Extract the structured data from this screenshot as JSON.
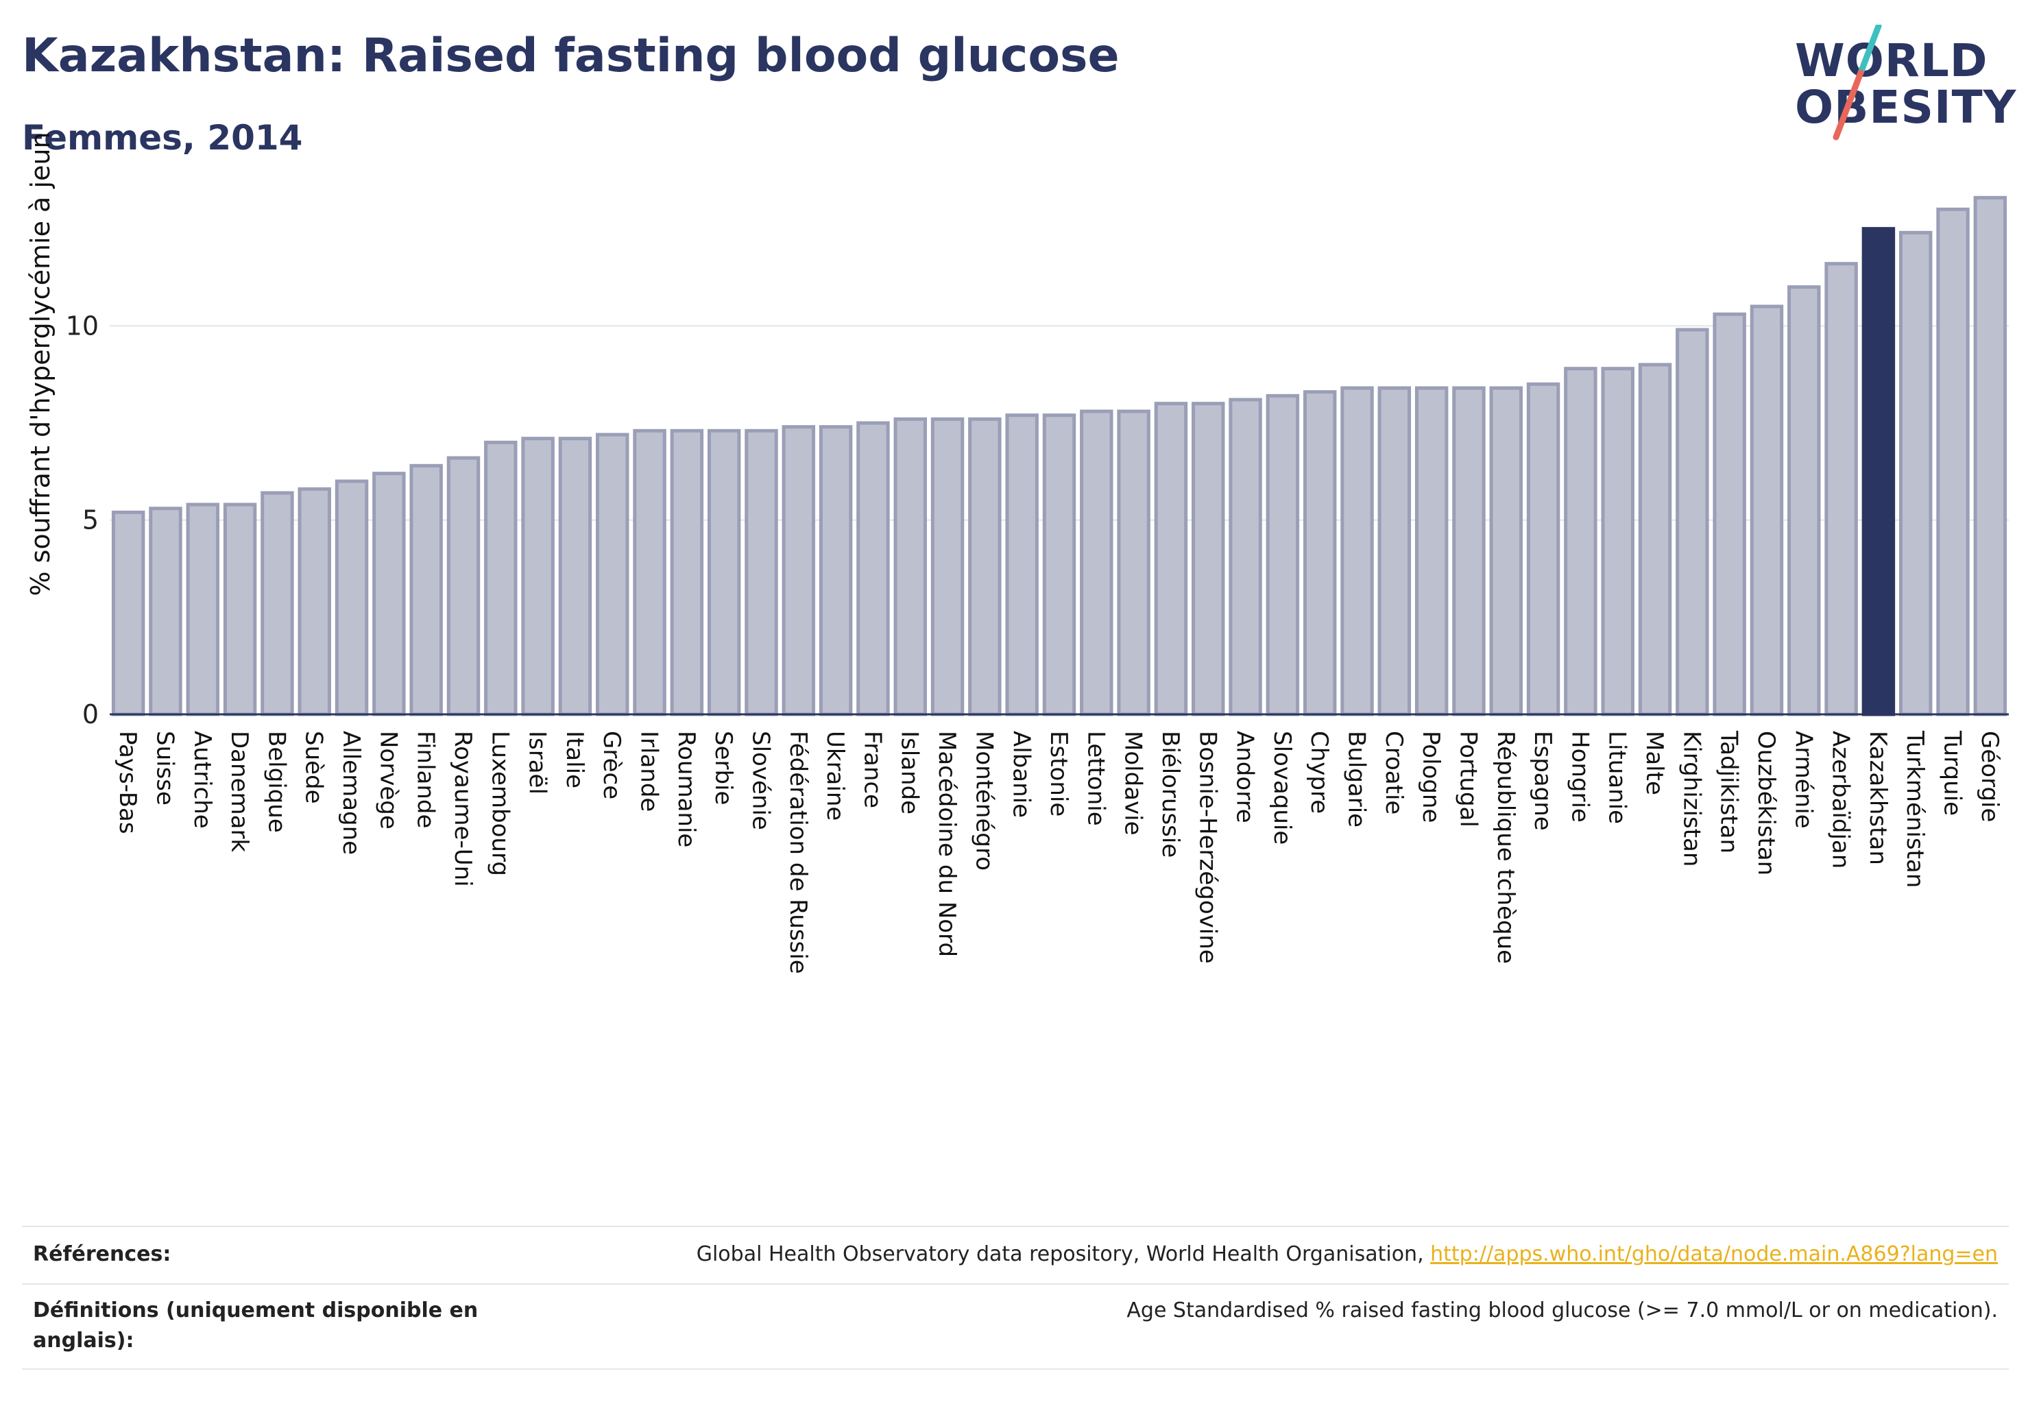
{
  "header": {
    "title": "Kazakhstan: Raised fasting blood glucose",
    "subtitle": "Femmes, 2014"
  },
  "logo": {
    "line1": "WORLD",
    "line2": "OBESITY",
    "colors": {
      "text": "#2b3561",
      "slash_top": "#3fbfbf",
      "slash_bottom": "#e8675a"
    }
  },
  "chart_data": {
    "type": "bar",
    "title": "Kazakhstan: Raised fasting blood glucose",
    "subtitle": "Femmes, 2014",
    "ylabel": "% souffrant d'hyperglycémie à jeun",
    "xlabel": "",
    "ylim": [
      0,
      13.8
    ],
    "yticks": [
      0,
      5,
      10
    ],
    "grid": true,
    "highlight": "Kazakhstan",
    "colors": {
      "bar": "#bdc0cf",
      "bar_edge": "#9a9eb6",
      "highlight": "#2b3561"
    },
    "categories": [
      "Pays-Bas",
      "Suisse",
      "Autriche",
      "Danemark",
      "Belgique",
      "Suède",
      "Allemagne",
      "Norvège",
      "Finlande",
      "Royaume-Uni",
      "Luxembourg",
      "Israël",
      "Italie",
      "Grèce",
      "Irlande",
      "Roumanie",
      "Serbie",
      "Slovénie",
      "Fédération de Russie",
      "Ukraine",
      "France",
      "Islande",
      "Macédoine du Nord",
      "Monténégro",
      "Albanie",
      "Estonie",
      "Lettonie",
      "Moldavie",
      "Biélorussie",
      "Bosnie-Herzégovine",
      "Andorre",
      "Slovaquie",
      "Chypre",
      "Bulgarie",
      "Croatie",
      "Pologne",
      "Portugal",
      "République tchèque",
      "Espagne",
      "Hongrie",
      "Lituanie",
      "Malte",
      "Kirghizistan",
      "Tadjikistan",
      "Ouzbékistan",
      "Arménie",
      "Azerbaïdjan",
      "Kazakhstan",
      "Turkménistan",
      "Turquie",
      "Géorgie"
    ],
    "values": [
      5.2,
      5.3,
      5.4,
      5.4,
      5.7,
      5.8,
      6.0,
      6.2,
      6.4,
      6.6,
      7.0,
      7.1,
      7.1,
      7.2,
      7.3,
      7.3,
      7.3,
      7.3,
      7.4,
      7.4,
      7.5,
      7.6,
      7.6,
      7.6,
      7.7,
      7.7,
      7.8,
      7.8,
      8.0,
      8.0,
      8.1,
      8.2,
      8.3,
      8.4,
      8.4,
      8.4,
      8.4,
      8.4,
      8.5,
      8.9,
      8.9,
      9.0,
      9.9,
      10.3,
      10.5,
      11.0,
      11.6,
      12.5,
      12.4,
      13.0,
      13.3
    ]
  },
  "footer": {
    "references_label": "Références:",
    "references_text": "Global Health Observatory data repository, World Health Organisation, ",
    "references_link": "http://apps.who.int/gho/data/node.main.A869?lang=en",
    "definitions_label": "Définitions (uniquement disponible en anglais):",
    "definitions_text": "Age Standardised % raised fasting blood glucose (>= 7.0 mmol/L or on medication)."
  }
}
